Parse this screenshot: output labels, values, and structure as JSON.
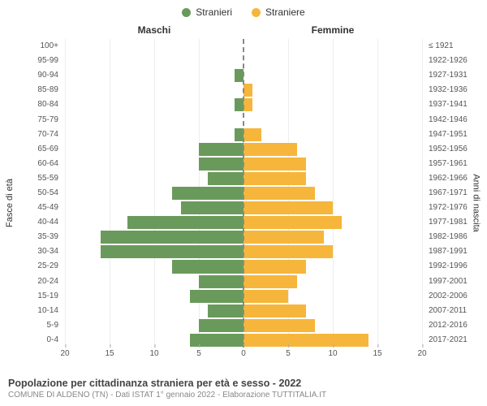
{
  "legend": {
    "male": {
      "label": "Stranieri",
      "color": "#6a9a5b"
    },
    "female": {
      "label": "Straniere",
      "color": "#f6b63b"
    }
  },
  "columns": {
    "male": "Maschi",
    "female": "Femmine"
  },
  "axis": {
    "left_title": "Fasce di età",
    "right_title": "Anni di nascita",
    "x_max": 20,
    "x_ticks": [
      20,
      15,
      10,
      5,
      0,
      5,
      10,
      15,
      20
    ],
    "center_line_color": "#888888",
    "grid_color": "#eeeeee",
    "label_fontsize": 10
  },
  "bars": {
    "male_color": "#6a9a5b",
    "female_color": "#f6b63b",
    "row_height_ratio": 0.9
  },
  "rows": [
    {
      "age": "100+",
      "birth": "≤ 1921",
      "m": 0,
      "f": 0
    },
    {
      "age": "95-99",
      "birth": "1922-1926",
      "m": 0,
      "f": 0
    },
    {
      "age": "90-94",
      "birth": "1927-1931",
      "m": 1,
      "f": 0
    },
    {
      "age": "85-89",
      "birth": "1932-1936",
      "m": 0,
      "f": 1
    },
    {
      "age": "80-84",
      "birth": "1937-1941",
      "m": 1,
      "f": 1
    },
    {
      "age": "75-79",
      "birth": "1942-1946",
      "m": 0,
      "f": 0
    },
    {
      "age": "70-74",
      "birth": "1947-1951",
      "m": 1,
      "f": 2
    },
    {
      "age": "65-69",
      "birth": "1952-1956",
      "m": 5,
      "f": 6
    },
    {
      "age": "60-64",
      "birth": "1957-1961",
      "m": 5,
      "f": 7
    },
    {
      "age": "55-59",
      "birth": "1962-1966",
      "m": 4,
      "f": 7
    },
    {
      "age": "50-54",
      "birth": "1967-1971",
      "m": 8,
      "f": 8
    },
    {
      "age": "45-49",
      "birth": "1972-1976",
      "m": 7,
      "f": 10
    },
    {
      "age": "40-44",
      "birth": "1977-1981",
      "m": 13,
      "f": 11
    },
    {
      "age": "35-39",
      "birth": "1982-1986",
      "m": 16,
      "f": 9
    },
    {
      "age": "30-34",
      "birth": "1987-1991",
      "m": 16,
      "f": 10
    },
    {
      "age": "25-29",
      "birth": "1992-1996",
      "m": 8,
      "f": 7
    },
    {
      "age": "20-24",
      "birth": "1997-2001",
      "m": 5,
      "f": 6
    },
    {
      "age": "15-19",
      "birth": "2002-2006",
      "m": 6,
      "f": 5
    },
    {
      "age": "10-14",
      "birth": "2007-2011",
      "m": 4,
      "f": 7
    },
    {
      "age": "5-9",
      "birth": "2012-2016",
      "m": 5,
      "f": 8
    },
    {
      "age": "0-4",
      "birth": "2017-2021",
      "m": 6,
      "f": 14
    }
  ],
  "footer": {
    "title": "Popolazione per cittadinanza straniera per età e sesso - 2022",
    "subtitle": "COMUNE DI ALDENO (TN) - Dati ISTAT 1° gennaio 2022 - Elaborazione TUTTITALIA.IT"
  }
}
